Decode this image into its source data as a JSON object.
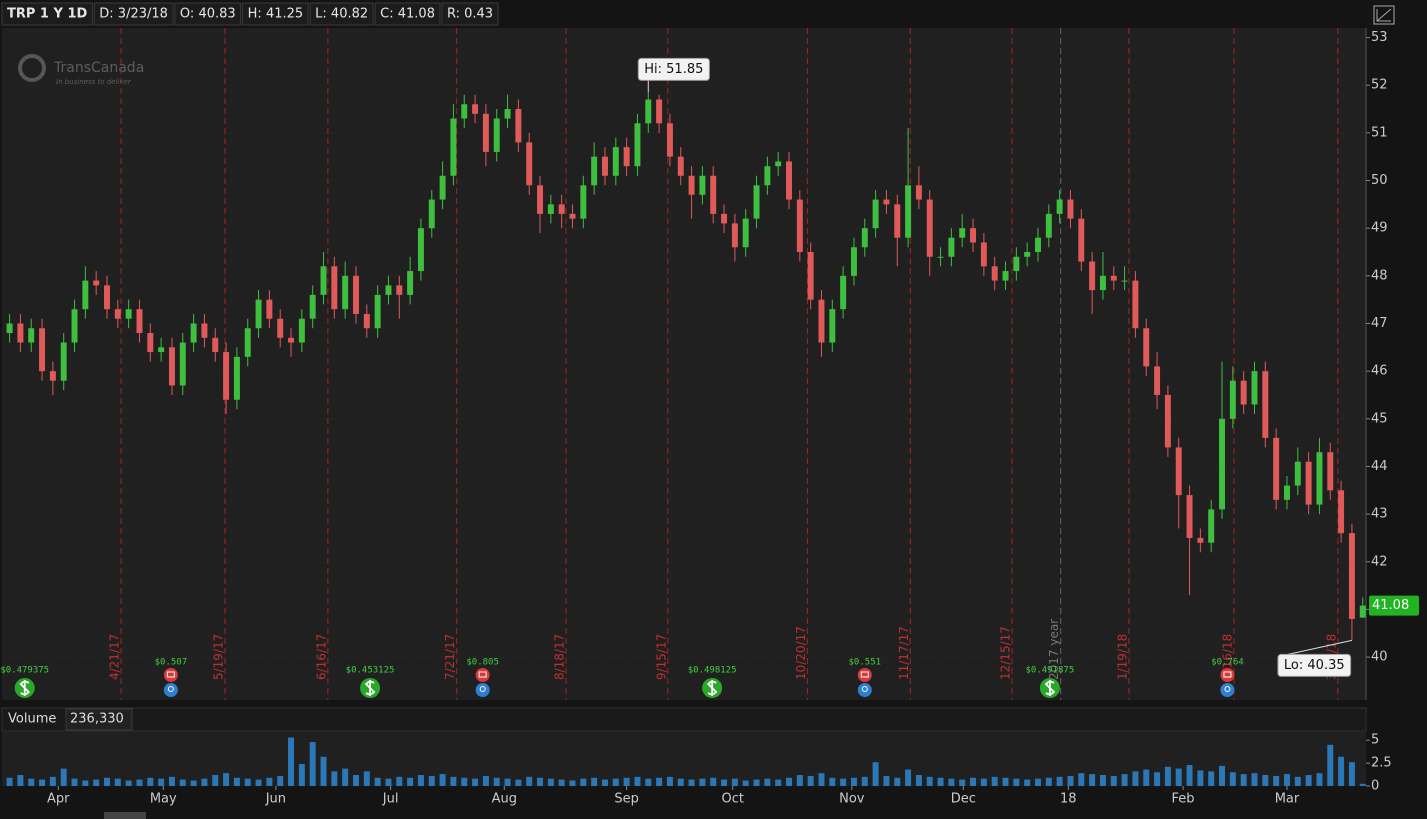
{
  "chart_data": {
    "type": "candlestick",
    "header": [
      "TRP 1 Y 1D",
      "D: 3/23/18",
      "O: 40.83",
      "H: 41.25",
      "L: 40.82",
      "C: 41.08",
      "R: 0.43"
    ],
    "watermark": {
      "title": "TransCanada",
      "subtitle": "In business to deliver"
    },
    "ylim": [
      39.1,
      53.2
    ],
    "yticks": [
      40,
      41,
      42,
      43,
      44,
      45,
      46,
      47,
      48,
      49,
      50,
      51,
      52,
      53
    ],
    "grid": true,
    "xlim": [
      -0.7,
      125.3
    ],
    "xticks": [
      {
        "value": 4.5,
        "label": "Apr"
      },
      {
        "value": 14.2,
        "label": "May"
      },
      {
        "value": 24.6,
        "label": "Jun"
      },
      {
        "value": 35.2,
        "label": "Jul"
      },
      {
        "value": 45.7,
        "label": "Aug"
      },
      {
        "value": 57,
        "label": "Sep"
      },
      {
        "value": 66.8,
        "label": "Oct"
      },
      {
        "value": 77.8,
        "label": "Nov"
      },
      {
        "value": 88.1,
        "label": "Dec"
      },
      {
        "value": 97.8,
        "label": "18"
      },
      {
        "value": 108.4,
        "label": "Feb"
      },
      {
        "value": 118,
        "label": "Mar"
      }
    ],
    "up_color": "#3fbf3f",
    "down_color": "#e05a5a",
    "volume_color": "#2a78b8",
    "candles": [
      [
        46.8,
        47.2,
        46.6,
        47.0
      ],
      [
        47.0,
        47.2,
        46.4,
        46.6
      ],
      [
        46.6,
        47.1,
        46.4,
        46.9
      ],
      [
        46.9,
        47.1,
        45.8,
        46.0
      ],
      [
        46.0,
        46.2,
        45.5,
        45.8
      ],
      [
        45.8,
        46.8,
        45.6,
        46.6
      ],
      [
        46.6,
        47.5,
        46.4,
        47.3
      ],
      [
        47.3,
        48.2,
        47.1,
        47.9
      ],
      [
        47.9,
        48.1,
        47.6,
        47.8
      ],
      [
        47.8,
        48.0,
        47.1,
        47.3
      ],
      [
        47.3,
        47.5,
        46.9,
        47.1
      ],
      [
        47.1,
        47.5,
        46.9,
        47.3
      ],
      [
        47.3,
        47.5,
        46.6,
        46.8
      ],
      [
        46.8,
        47.0,
        46.2,
        46.4
      ],
      [
        46.4,
        46.7,
        46.2,
        46.5
      ],
      [
        46.5,
        46.7,
        45.5,
        45.7
      ],
      [
        45.7,
        46.8,
        45.5,
        46.6
      ],
      [
        46.6,
        47.2,
        46.4,
        47.0
      ],
      [
        47.0,
        47.2,
        46.5,
        46.7
      ],
      [
        46.7,
        46.9,
        46.2,
        46.4
      ],
      [
        46.4,
        46.6,
        45.1,
        45.4
      ],
      [
        45.4,
        46.5,
        45.2,
        46.3
      ],
      [
        46.3,
        47.1,
        46.1,
        46.9
      ],
      [
        46.9,
        47.7,
        46.7,
        47.5
      ],
      [
        47.5,
        47.7,
        46.9,
        47.1
      ],
      [
        47.1,
        47.3,
        46.5,
        46.7
      ],
      [
        46.7,
        46.9,
        46.3,
        46.6
      ],
      [
        46.6,
        47.3,
        46.4,
        47.1
      ],
      [
        47.1,
        47.8,
        46.9,
        47.6
      ],
      [
        47.6,
        48.5,
        47.4,
        48.2
      ],
      [
        48.2,
        48.4,
        47.1,
        47.3
      ],
      [
        47.3,
        48.3,
        47.1,
        48.0
      ],
      [
        48.0,
        48.2,
        47.0,
        47.2
      ],
      [
        47.2,
        47.4,
        46.7,
        46.9
      ],
      [
        46.9,
        47.8,
        46.7,
        47.6
      ],
      [
        47.6,
        48.0,
        47.4,
        47.8
      ],
      [
        47.8,
        48.0,
        47.1,
        47.6
      ],
      [
        47.6,
        48.4,
        47.4,
        48.1
      ],
      [
        48.1,
        49.2,
        47.9,
        49.0
      ],
      [
        49.0,
        49.8,
        48.8,
        49.6
      ],
      [
        49.6,
        50.4,
        49.4,
        50.1
      ],
      [
        50.1,
        51.6,
        49.9,
        51.3
      ],
      [
        51.3,
        51.8,
        51.1,
        51.6
      ],
      [
        51.6,
        51.8,
        51.2,
        51.4
      ],
      [
        51.4,
        51.6,
        50.3,
        50.6
      ],
      [
        50.6,
        51.5,
        50.4,
        51.3
      ],
      [
        51.3,
        51.8,
        51.1,
        51.5
      ],
      [
        51.5,
        51.7,
        50.6,
        50.8
      ],
      [
        50.8,
        51.0,
        49.7,
        49.9
      ],
      [
        49.9,
        50.1,
        48.9,
        49.3
      ],
      [
        49.3,
        49.7,
        49.1,
        49.5
      ],
      [
        49.5,
        49.7,
        49.0,
        49.3
      ],
      [
        49.3,
        49.5,
        49.0,
        49.2
      ],
      [
        49.2,
        50.1,
        49.0,
        49.9
      ],
      [
        49.9,
        50.8,
        49.7,
        50.5
      ],
      [
        50.5,
        50.7,
        49.9,
        50.1
      ],
      [
        50.1,
        50.9,
        49.9,
        50.7
      ],
      [
        50.7,
        50.9,
        50.1,
        50.3
      ],
      [
        50.3,
        51.4,
        50.1,
        51.2
      ],
      [
        51.2,
        51.85,
        51.0,
        51.7
      ],
      [
        51.7,
        51.8,
        51.0,
        51.2
      ],
      [
        51.2,
        51.4,
        50.3,
        50.5
      ],
      [
        50.5,
        50.7,
        49.9,
        50.1
      ],
      [
        50.1,
        50.3,
        49.2,
        49.7
      ],
      [
        49.7,
        50.3,
        49.5,
        50.1
      ],
      [
        50.1,
        50.3,
        49.1,
        49.3
      ],
      [
        49.3,
        49.5,
        48.9,
        49.1
      ],
      [
        49.1,
        49.3,
        48.3,
        48.6
      ],
      [
        48.6,
        49.4,
        48.4,
        49.2
      ],
      [
        49.2,
        50.1,
        49.0,
        49.9
      ],
      [
        49.9,
        50.5,
        49.7,
        50.3
      ],
      [
        50.3,
        50.6,
        50.1,
        50.4
      ],
      [
        50.4,
        50.6,
        49.4,
        49.6
      ],
      [
        49.6,
        49.8,
        48.3,
        48.5
      ],
      [
        48.5,
        48.7,
        47.3,
        47.5
      ],
      [
        47.5,
        47.7,
        46.3,
        46.6
      ],
      [
        46.6,
        47.5,
        46.4,
        47.3
      ],
      [
        47.3,
        48.2,
        47.1,
        48.0
      ],
      [
        48.0,
        48.8,
        47.8,
        48.6
      ],
      [
        48.6,
        49.2,
        48.4,
        49.0
      ],
      [
        49.0,
        49.8,
        48.8,
        49.6
      ],
      [
        49.6,
        49.8,
        49.3,
        49.5
      ],
      [
        49.5,
        49.7,
        48.2,
        48.8
      ],
      [
        48.8,
        51.1,
        48.6,
        49.9
      ],
      [
        49.9,
        50.3,
        49.4,
        49.6
      ],
      [
        49.6,
        49.8,
        48.0,
        48.4
      ],
      [
        48.4,
        48.6,
        48.2,
        48.4
      ],
      [
        48.4,
        49.0,
        48.2,
        48.8
      ],
      [
        48.8,
        49.3,
        48.6,
        49.0
      ],
      [
        49.0,
        49.2,
        48.5,
        48.7
      ],
      [
        48.7,
        48.9,
        48.0,
        48.2
      ],
      [
        48.2,
        48.4,
        47.7,
        47.9
      ],
      [
        47.9,
        48.3,
        47.7,
        48.1
      ],
      [
        48.1,
        48.6,
        47.9,
        48.4
      ],
      [
        48.4,
        48.7,
        48.2,
        48.5
      ],
      [
        48.5,
        49.0,
        48.3,
        48.8
      ],
      [
        48.8,
        49.5,
        48.6,
        49.3
      ],
      [
        49.3,
        49.8,
        49.1,
        49.6
      ],
      [
        49.6,
        49.8,
        49.0,
        49.2
      ],
      [
        49.2,
        49.4,
        48.1,
        48.3
      ],
      [
        48.3,
        48.5,
        47.2,
        47.7
      ],
      [
        47.7,
        48.5,
        47.5,
        48.0
      ],
      [
        48.0,
        48.2,
        47.7,
        47.9
      ],
      [
        47.9,
        48.2,
        47.7,
        47.9
      ],
      [
        47.9,
        48.1,
        46.7,
        46.9
      ],
      [
        46.9,
        47.1,
        45.9,
        46.1
      ],
      [
        46.1,
        46.4,
        45.2,
        45.5
      ],
      [
        45.5,
        45.7,
        44.2,
        44.4
      ],
      [
        44.4,
        44.6,
        42.7,
        43.4
      ],
      [
        43.4,
        43.6,
        41.3,
        42.5
      ],
      [
        42.5,
        42.7,
        42.2,
        42.4
      ],
      [
        42.4,
        43.3,
        42.2,
        43.1
      ],
      [
        43.1,
        46.2,
        42.9,
        45.0
      ],
      [
        45.0,
        46.1,
        44.8,
        45.8
      ],
      [
        45.8,
        46.0,
        45.1,
        45.3
      ],
      [
        45.3,
        46.2,
        45.1,
        46.0
      ],
      [
        46.0,
        46.2,
        44.4,
        44.6
      ],
      [
        44.6,
        44.8,
        43.1,
        43.3
      ],
      [
        43.3,
        43.8,
        43.1,
        43.6
      ],
      [
        43.6,
        44.4,
        43.4,
        44.1
      ],
      [
        44.1,
        44.3,
        43.0,
        43.2
      ],
      [
        43.2,
        44.6,
        43.0,
        44.3
      ],
      [
        44.3,
        44.5,
        43.3,
        43.5
      ],
      [
        43.5,
        43.7,
        42.4,
        42.6
      ],
      [
        42.6,
        42.8,
        40.35,
        40.8
      ],
      [
        40.83,
        41.25,
        40.82,
        41.08
      ]
    ],
    "volume_title": "Volume",
    "volume_last": "236,330",
    "volume_ylim": [
      0,
      5.9
    ],
    "volume_yticks": [
      0,
      2.5,
      5
    ],
    "volume": [
      0.9,
      1.2,
      0.8,
      0.7,
      1.0,
      1.9,
      0.8,
      0.6,
      0.7,
      0.9,
      0.8,
      0.6,
      0.7,
      0.9,
      0.8,
      1.0,
      0.7,
      0.6,
      0.8,
      1.2,
      1.4,
      0.9,
      0.8,
      0.7,
      0.9,
      1.1,
      5.3,
      2.4,
      4.8,
      3.2,
      1.6,
      1.9,
      1.2,
      1.6,
      0.9,
      0.8,
      1.0,
      0.9,
      1.2,
      1.1,
      1.3,
      1.0,
      0.9,
      0.8,
      1.1,
      0.9,
      0.8,
      0.7,
      1.0,
      0.9,
      0.8,
      0.7,
      0.6,
      0.8,
      0.9,
      0.7,
      0.8,
      0.9,
      1.0,
      0.8,
      0.9,
      1.0,
      0.8,
      0.7,
      0.8,
      0.9,
      0.7,
      0.8,
      0.6,
      0.7,
      0.8,
      0.7,
      0.9,
      1.2,
      1.1,
      1.4,
      0.9,
      0.8,
      0.9,
      1.0,
      2.6,
      1.1,
      0.9,
      1.8,
      1.2,
      1.0,
      0.9,
      0.8,
      0.7,
      0.9,
      0.8,
      1.0,
      0.9,
      0.8,
      0.7,
      0.8,
      0.9,
      1.0,
      1.1,
      1.4,
      1.3,
      1.2,
      1.1,
      1.3,
      1.6,
      1.8,
      1.5,
      2.1,
      1.9,
      2.3,
      1.7,
      1.6,
      2.2,
      1.5,
      1.3,
      1.4,
      1.2,
      1.1,
      1.3,
      1.0,
      1.2,
      1.4,
      4.5,
      3.2,
      2.6,
      0.236
    ],
    "period_lines": [
      {
        "label": "4/21/17",
        "x": 10.3
      },
      {
        "label": "5/19/17",
        "x": 19.9
      },
      {
        "label": "6/16/17",
        "x": 29.4
      },
      {
        "label": "7/21/17",
        "x": 41.3
      },
      {
        "label": "8/18/17",
        "x": 51.4
      },
      {
        "label": "9/15/17",
        "x": 60.8
      },
      {
        "label": "10/20/17",
        "x": 73.7
      },
      {
        "label": "11/17/17",
        "x": 83.2
      },
      {
        "label": "12/15/17",
        "x": 92.6
      },
      {
        "label": "1/19/18",
        "x": 103.4
      },
      {
        "label": "2/16/18",
        "x": 113.1
      },
      {
        "label": "3/16/18",
        "x": 122.7
      }
    ],
    "year_line": {
      "label": "2017 year",
      "x": 97.1
    },
    "dividends": [
      {
        "label": "$0.479375",
        "x": 1.4
      },
      {
        "label": "$0.453125",
        "x": 33.3
      },
      {
        "label": "$0.498125",
        "x": 64.9
      },
      {
        "label": "$0.491875",
        "x": 96.1
      }
    ],
    "earnings": [
      {
        "label": "$0.507",
        "x": 14.9
      },
      {
        "label": "$0.805",
        "x": 43.7
      },
      {
        "label": "$0.551",
        "x": 79
      },
      {
        "label": "$0.764",
        "x": 112.5
      }
    ],
    "hi": {
      "label": "Hi: 51.85",
      "value": 51.85,
      "x": 59
    },
    "lo": {
      "label": "Lo: 40.35",
      "value": 40.35,
      "x": 124
    },
    "last_price": 41.08
  }
}
